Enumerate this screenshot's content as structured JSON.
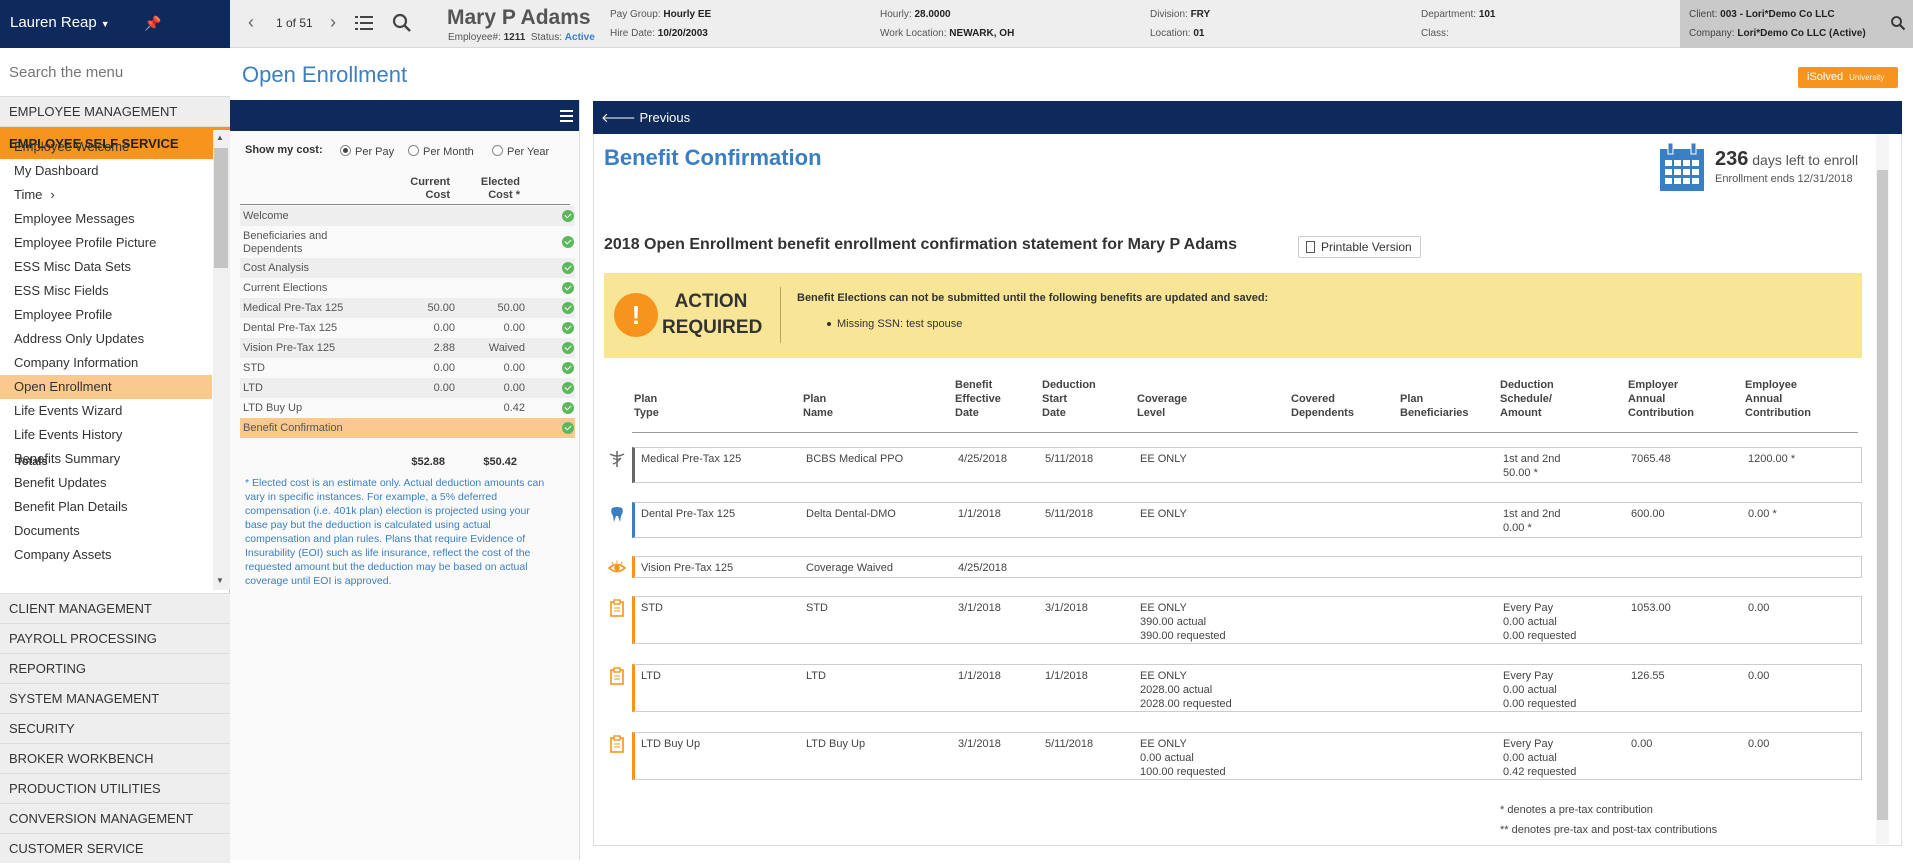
{
  "top": {
    "user": "Lauren Reap",
    "pager": "1 of 51",
    "employee_name": "Mary P Adams",
    "employee_num_label": "Employee#:",
    "employee_num": "1211",
    "status_label": "Status:",
    "status": "Active",
    "info": [
      {
        "label": "Pay Group:",
        "value": "Hourly EE"
      },
      {
        "label": "Hire Date:",
        "value": "10/20/2003"
      },
      {
        "label": "Hourly:",
        "value": "28.0000"
      },
      {
        "label": "Work Location:",
        "value": "NEWARK, OH"
      },
      {
        "label": "Division:",
        "value": "FRY"
      },
      {
        "label": "Location:",
        "value": "01"
      },
      {
        "label": "Department:",
        "value": "101"
      },
      {
        "label": "Class:",
        "value": ""
      }
    ],
    "client_label": "Client:",
    "client": "003 - Lori*Demo Co LLC",
    "company_label": "Company:",
    "company": "Lori*Demo Co LLC (Active)"
  },
  "sidebar": {
    "search_placeholder": "Search the menu",
    "sections_top": [
      "EMPLOYEE MANAGEMENT",
      "EMPLOYEE SELF SERVICE"
    ],
    "sub_items": [
      "Employee Welcome",
      "My Dashboard",
      "Time",
      "Employee Messages",
      "Employee Profile Picture",
      "ESS Misc Data Sets",
      "ESS Misc Fields",
      "Employee Profile",
      "Address Only Updates",
      "Company Information",
      "Open Enrollment",
      "Life Events Wizard",
      "Life Events History",
      "Benefits Summary",
      "Benefit Updates",
      "Benefit Plan Details",
      "Documents",
      "Company Assets"
    ],
    "time_chevron": "›",
    "selected_sub": "Open Enrollment",
    "sections_bottom": [
      "CLIENT MANAGEMENT",
      "PAYROLL PROCESSING",
      "REPORTING",
      "SYSTEM MANAGEMENT",
      "SECURITY",
      "BROKER WORKBENCH",
      "PRODUCTION UTILITIES",
      "CONVERSION MANAGEMENT",
      "CUSTOMER SERVICE"
    ]
  },
  "page": {
    "title": "Open Enrollment",
    "isolved": "iSolved",
    "isolved_sub": "University"
  },
  "summary": {
    "show_cost_label": "Show my cost:",
    "radios": [
      {
        "label": "Per Pay",
        "checked": true
      },
      {
        "label": "Per Month",
        "checked": false
      },
      {
        "label": "Per Year",
        "checked": false
      }
    ],
    "col_current": [
      "Current",
      "Cost"
    ],
    "col_elected": [
      "Elected",
      "Cost *"
    ],
    "rows": [
      {
        "name": "Welcome",
        "current": "",
        "elected": ""
      },
      {
        "name": "Beneficiaries and Dependents",
        "current": "",
        "elected": ""
      },
      {
        "name": "Cost Analysis",
        "current": "",
        "elected": ""
      },
      {
        "name": "Current Elections",
        "current": "",
        "elected": ""
      },
      {
        "name": "Medical Pre-Tax 125",
        "current": "50.00",
        "elected": "50.00"
      },
      {
        "name": "Dental Pre-Tax 125",
        "current": "0.00",
        "elected": "0.00"
      },
      {
        "name": "Vision Pre-Tax 125",
        "current": "2.88",
        "elected": "Waived"
      },
      {
        "name": "STD",
        "current": "0.00",
        "elected": "0.00"
      },
      {
        "name": "LTD",
        "current": "0.00",
        "elected": "0.00"
      },
      {
        "name": "LTD Buy Up",
        "current": "",
        "elected": "0.42"
      },
      {
        "name": "Benefit Confirmation",
        "current": "",
        "elected": ""
      }
    ],
    "totals_label": "Totals",
    "total_current": "$52.88",
    "total_elected": "$50.42",
    "disclaimer": "* Elected cost is an estimate only. Actual deduction amounts can vary in specific instances. For example, a 5% deferred compensation (i.e. 401k plan) election is projected using your base pay but the deduction is calculated using actual compensation and plan rules. Plans that require Evidence of Insurability (EOI) such as life insurance, reflect the cost of the requested amount but the deduction may be based on actual coverage until EOI is approved."
  },
  "confirmation": {
    "previous": "Previous",
    "title": "Benefit Confirmation",
    "days_left": "236",
    "days_text": "days left to enroll",
    "enroll_ends": "Enrollment ends 12/31/2018",
    "statement": "2018 Open Enrollment benefit enrollment confirmation statement for Mary P Adams",
    "printable": "Printable Version",
    "action_icon": "!",
    "action_title": "ACTION REQUIRED",
    "action_message": "Benefit Elections can not be submitted until the following benefits are updated and saved:",
    "action_item": "Missing SSN: test spouse",
    "headers": [
      [
        "Plan",
        "Type"
      ],
      [
        "Plan",
        "Name"
      ],
      [
        "Benefit",
        "Effective",
        "Date"
      ],
      [
        "Deduction",
        "Start",
        "Date"
      ],
      [
        "Coverage",
        "Level"
      ],
      [
        "Covered",
        "Dependents"
      ],
      [
        "Plan",
        "Beneficiaries"
      ],
      [
        "Deduction",
        "Schedule/",
        "Amount"
      ],
      [
        "Employer",
        "Annual",
        "Contribution"
      ],
      [
        "Employee",
        "Annual",
        "Contribution"
      ]
    ],
    "plans": [
      {
        "icon": "caduceus-icon",
        "type": "Medical Pre-Tax 125",
        "name": "BCBS Medical PPO",
        "eff": "4/25/2018",
        "start": "5/11/2018",
        "coverage": [
          "EE ONLY"
        ],
        "dependents": "",
        "beneficiaries": "",
        "schedule": [
          "1st and 2nd",
          "50.00 *"
        ],
        "employer": "7065.48",
        "employee": "1200.00 *",
        "color": "#666666"
      },
      {
        "icon": "tooth-icon",
        "type": "Dental Pre-Tax 125",
        "name": "Delta Dental-DMO",
        "eff": "1/1/2018",
        "start": "5/11/2018",
        "coverage": [
          "EE ONLY"
        ],
        "dependents": "",
        "beneficiaries": "",
        "schedule": [
          "1st and 2nd",
          "0.00 *"
        ],
        "employer": "600.00",
        "employee": "0.00 *",
        "color": "#3a7fc4"
      },
      {
        "icon": "eye-icon",
        "type": "Vision Pre-Tax 125",
        "name": "Coverage Waived",
        "eff": "4/25/2018",
        "start": "",
        "coverage": [],
        "dependents": "",
        "beneficiaries": "",
        "schedule": [],
        "employer": "",
        "employee": "",
        "color": "#f7941d"
      },
      {
        "icon": "clipboard-icon",
        "type": "STD",
        "name": "STD",
        "eff": "3/1/2018",
        "start": "3/1/2018",
        "coverage": [
          "EE ONLY",
          "390.00 actual",
          "390.00 requested"
        ],
        "dependents": "",
        "beneficiaries": "",
        "schedule": [
          "Every Pay",
          "0.00 actual",
          "0.00 requested"
        ],
        "employer": "1053.00",
        "employee": "0.00",
        "color": "#f7941d"
      },
      {
        "icon": "clipboard-icon",
        "type": "LTD",
        "name": "LTD",
        "eff": "1/1/2018",
        "start": "1/1/2018",
        "coverage": [
          "EE ONLY",
          "2028.00 actual",
          "2028.00 requested"
        ],
        "dependents": "",
        "beneficiaries": "",
        "schedule": [
          "Every Pay",
          "0.00 actual",
          "0.00 requested"
        ],
        "employer": "126.55",
        "employee": "0.00",
        "color": "#f7941d"
      },
      {
        "icon": "clipboard-icon",
        "type": "LTD Buy Up",
        "name": "LTD Buy Up",
        "eff": "3/1/2018",
        "start": "5/11/2018",
        "coverage": [
          "EE ONLY",
          "0.00 actual",
          "100.00 requested"
        ],
        "dependents": "",
        "beneficiaries": "",
        "schedule": [
          "Every Pay",
          "0.00 actual",
          "0.42 requested"
        ],
        "employer": "0.00",
        "employee": "0.00",
        "color": "#f7941d"
      }
    ],
    "footnote1": "* denotes a pre-tax contribution",
    "footnote2": "** denotes pre-tax and post-tax contributions"
  }
}
